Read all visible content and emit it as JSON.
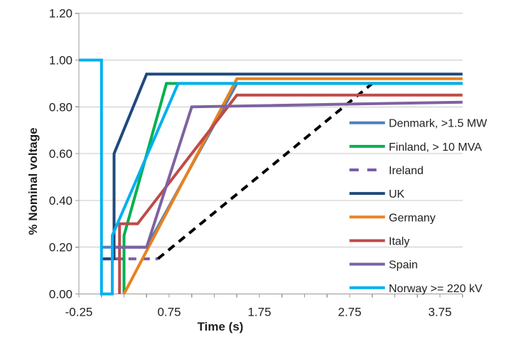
{
  "chart_data": {
    "type": "line",
    "title": "",
    "xlabel": "Time (s)",
    "ylabel": "% Nominal voltage",
    "grid": "horizontal-only",
    "legend_position": "right-inside-transparent",
    "colors": {
      "gridline": "#c9c9c9",
      "axis": "#9a9a9a",
      "text": "#1f1f1f",
      "background": "#ffffff"
    },
    "x_axis": {
      "min": -0.25,
      "max": 4.0,
      "minor_tick_step": 0.25,
      "major_tick_values": [
        -0.25,
        0.75,
        1.75,
        2.75,
        3.75
      ],
      "major_tick_labels": [
        "-0.25",
        "0.75",
        "1.75",
        "2.75",
        "3.75"
      ]
    },
    "y_axis": {
      "min": 0,
      "max": 1.2,
      "tick_values": [
        0,
        0.2,
        0.4,
        0.6,
        0.8,
        1.0,
        1.2
      ],
      "tick_labels": [
        "0.00",
        "0.20",
        "0.40",
        "0.60",
        "0.80",
        "1.00",
        "1.20"
      ]
    },
    "series": [
      {
        "name": "Denmark, >1.5 MW",
        "color": "#4F81BD",
        "style": "solid",
        "points": [
          [
            0,
            0.2
          ],
          [
            0.5,
            0.2
          ],
          [
            1.5,
            0.9
          ],
          [
            4.0,
            0.9
          ]
        ]
      },
      {
        "name": "Finland, > 10 MVA",
        "color": "#00B050",
        "style": "solid",
        "points": [
          [
            0.25,
            0
          ],
          [
            0.25,
            0.25
          ],
          [
            0.72,
            0.9
          ],
          [
            4.0,
            0.9
          ]
        ]
      },
      {
        "name": "Ireland",
        "color": "#7B5CA8",
        "style": "dashed",
        "segments": [
          {
            "color": "#7B5CA8",
            "dash": true,
            "points": [
              [
                0,
                0.15
              ],
              [
                0.625,
                0.15
              ]
            ]
          },
          {
            "color": "#000000",
            "dash": true,
            "points": [
              [
                0.625,
                0.15
              ],
              [
                3.0,
                0.9
              ]
            ]
          }
        ]
      },
      {
        "name": "UK",
        "color": "#1F497D",
        "style": "solid",
        "points": [
          [
            0,
            0.15
          ],
          [
            0.14,
            0.15
          ],
          [
            0.14,
            0.6
          ],
          [
            0.5,
            0.94
          ],
          [
            4.0,
            0.94
          ]
        ]
      },
      {
        "name": "Germany",
        "color": "#E8821E",
        "style": "solid",
        "points": [
          [
            0.25,
            0
          ],
          [
            1.5,
            0.92
          ],
          [
            4.0,
            0.92
          ]
        ]
      },
      {
        "name": "Italy",
        "color": "#BE4B48",
        "style": "solid",
        "points": [
          [
            0.2,
            0
          ],
          [
            0.2,
            0.3
          ],
          [
            0.4,
            0.3
          ],
          [
            1.5,
            0.85
          ],
          [
            4.0,
            0.85
          ]
        ]
      },
      {
        "name": "Spain",
        "color": "#7E62A1",
        "style": "solid",
        "points": [
          [
            0.15,
            0.2
          ],
          [
            0.5,
            0.2
          ],
          [
            1.0,
            0.8
          ],
          [
            4.0,
            0.82
          ]
        ]
      },
      {
        "name": "Norway >= 220 kV",
        "color": "#00B0F0",
        "style": "solid",
        "points": [
          [
            -0.25,
            1.0
          ],
          [
            0,
            1.0
          ],
          [
            0,
            0
          ],
          [
            0.12,
            0
          ],
          [
            0.12,
            0.25
          ],
          [
            0.85,
            0.9
          ],
          [
            4.0,
            0.9
          ]
        ]
      }
    ]
  }
}
